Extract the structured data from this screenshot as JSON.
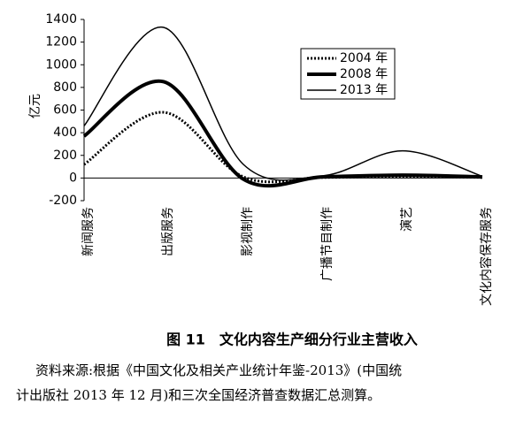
{
  "chart_data": {
    "type": "line",
    "y_label": "亿元",
    "categories": [
      "新闻服务",
      "出版服务",
      "影视制作",
      "广播节目制作",
      "演艺",
      "文化内容保存服务"
    ],
    "series": [
      {
        "name": "2004 年",
        "color": "#000000",
        "style": "dotted",
        "values": [
          120,
          580,
          10,
          5,
          15,
          5
        ]
      },
      {
        "name": "2008 年",
        "color": "#000000",
        "style": "thick",
        "values": [
          370,
          850,
          -10,
          10,
          25,
          10
        ]
      },
      {
        "name": "2013 年",
        "color": "#000000",
        "style": "thin",
        "values": [
          460,
          1330,
          120,
          20,
          240,
          15
        ]
      }
    ],
    "ylim": [
      -200,
      1400
    ],
    "yticks": [
      -200,
      0,
      200,
      400,
      600,
      800,
      1000,
      1200,
      1400
    ],
    "caption": "图 11　文化内容生产细分行业主营收入",
    "note": [
      "资料来源:根据《中国文化及相关产业统计年鉴-2013》(中国统",
      "计出版社 2013 年 12 月)和三次全国经济普查数据汇总测算。"
    ]
  }
}
